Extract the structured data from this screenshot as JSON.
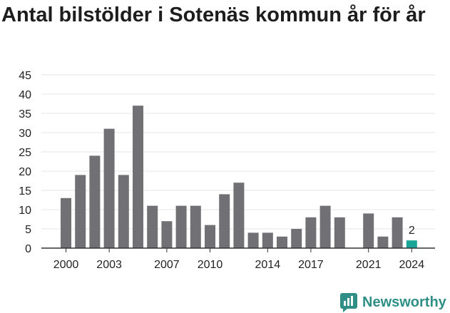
{
  "title": "Antal bilstölder i Sotenäs kommun år för år",
  "brand": {
    "name": "Newsworthy",
    "icon": "newsworthy-logo-icon",
    "color": "#2f8f86"
  },
  "chart_data": {
    "type": "bar",
    "title": "Antal bilstölder i Sotenäs kommun år för år",
    "xlabel": "",
    "ylabel": "",
    "categories": [
      "2000",
      "2001",
      "2002",
      "2003",
      "2004",
      "2005",
      "2006",
      "2007",
      "2008",
      "2009",
      "2010",
      "2011",
      "2012",
      "2013",
      "2014",
      "2015",
      "2016",
      "2017",
      "2018",
      "2019",
      "2020",
      "2021",
      "2022",
      "2023",
      "2024"
    ],
    "values": [
      13,
      19,
      24,
      31,
      19,
      37,
      11,
      7,
      11,
      11,
      6,
      14,
      17,
      4,
      4,
      3,
      5,
      8,
      11,
      8,
      null,
      9,
      3,
      8,
      2
    ],
    "x_tick_labels": [
      "2000",
      "2003",
      "2007",
      "2010",
      "2014",
      "2017",
      "2021",
      "2024"
    ],
    "y_ticks": [
      0,
      5,
      10,
      15,
      20,
      25,
      30,
      35,
      40,
      45
    ],
    "ylim": [
      0,
      45
    ],
    "grid": true,
    "colors": {
      "bar": "#717074",
      "highlight": "#1aa596"
    },
    "highlight_category": "2024",
    "data_labels": [
      {
        "category": "2024",
        "text": "2"
      }
    ]
  }
}
